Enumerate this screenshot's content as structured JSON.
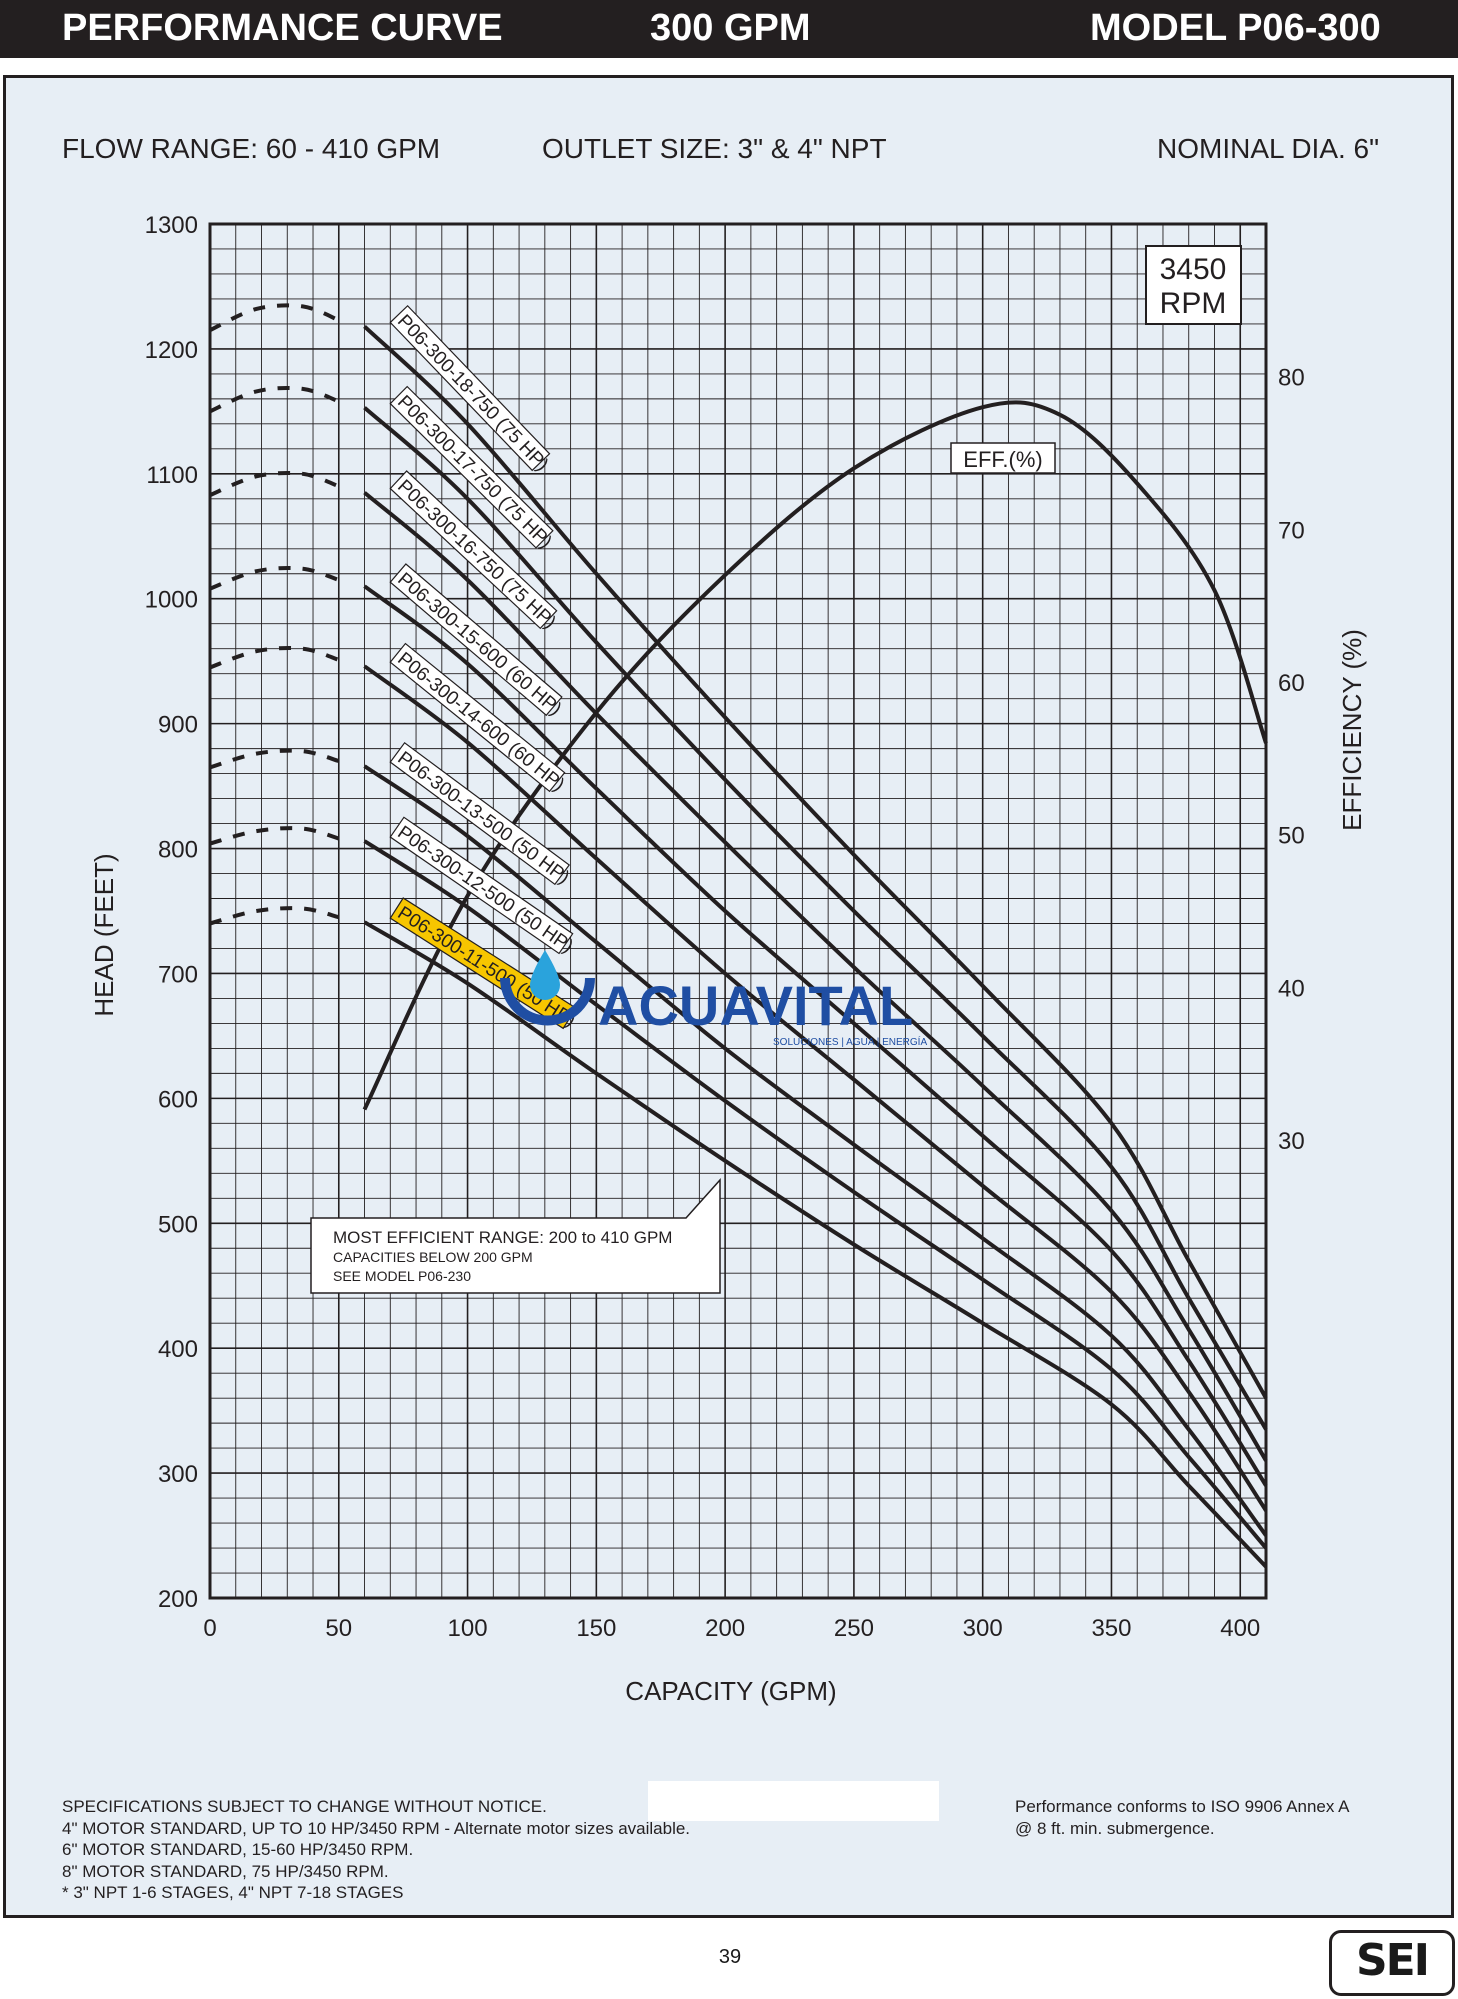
{
  "header": {
    "title": "PERFORMANCE CURVE",
    "flow": "300 GPM",
    "model": "MODEL  P06-300"
  },
  "specs": {
    "flow_range": "FLOW RANGE: 60 - 410 GPM",
    "outlet": "OUTLET SIZE: 3\" & 4\" NPT",
    "diameter": "NOMINAL DIA. 6\""
  },
  "colors": {
    "background": "#e7eef5",
    "ink": "#231f20",
    "highlight": "#f7c600",
    "brand": "#1f4ea3",
    "brand_drop": "#2aa3dc"
  },
  "chart_data": {
    "type": "line",
    "title": "PERFORMANCE CURVE 300 GPM MODEL P06-300",
    "xlabel": "CAPACITY (GPM)",
    "ylabel": "HEAD (FEET)",
    "y2label": "EFFICIENCY (%)",
    "xlim": [
      0,
      410
    ],
    "ylim": [
      200,
      1300
    ],
    "y2lim": [
      0,
      90
    ],
    "x_ticks": [
      0,
      50,
      100,
      150,
      200,
      250,
      300,
      350,
      400
    ],
    "y_ticks": [
      200,
      300,
      400,
      500,
      600,
      700,
      800,
      900,
      1000,
      1100,
      1200,
      1300
    ],
    "y2_ticks": [
      30,
      40,
      50,
      60,
      70,
      80
    ],
    "speed_label": "3450\nRPM",
    "eff_label": "EFF.(%)",
    "series": [
      {
        "name": "P06-300-18-750 (75 HP)",
        "x": [
          60,
          100,
          150,
          200,
          250,
          300,
          350,
          380,
          410
        ],
        "y": [
          1218,
          1140,
          1020,
          905,
          795,
          690,
          580,
          470,
          360
        ],
        "shutoff": [
          1215,
          1232,
          1234,
          1223
        ]
      },
      {
        "name": "P06-300-17-750 (75 HP)",
        "x": [
          60,
          100,
          150,
          200,
          250,
          300,
          350,
          380,
          410
        ],
        "y": [
          1153,
          1080,
          965,
          855,
          750,
          650,
          545,
          440,
          335
        ],
        "shutoff": [
          1150,
          1166,
          1168,
          1158
        ]
      },
      {
        "name": "P06-300-16-750 (75 HP)",
        "x": [
          60,
          100,
          150,
          200,
          250,
          300,
          350,
          380,
          410
        ],
        "y": [
          1085,
          1015,
          908,
          805,
          705,
          610,
          510,
          415,
          310
        ],
        "shutoff": [
          1083,
          1098,
          1100,
          1090
        ]
      },
      {
        "name": "P06-300-15-600 (60 HP)",
        "x": [
          60,
          100,
          150,
          200,
          250,
          300,
          350,
          380,
          410
        ],
        "y": [
          1010,
          948,
          848,
          750,
          660,
          570,
          478,
          390,
          290
        ],
        "shutoff": [
          1008,
          1022,
          1024,
          1015
        ]
      },
      {
        "name": "P06-300-14-600 (60 HP)",
        "x": [
          60,
          100,
          150,
          200,
          250,
          300,
          350,
          380,
          410
        ],
        "y": [
          946,
          885,
          792,
          700,
          615,
          530,
          445,
          365,
          270
        ],
        "shutoff": [
          945,
          958,
          960,
          951
        ]
      },
      {
        "name": "P06-300-13-500 (50 HP)",
        "x": [
          60,
          100,
          150,
          200,
          250,
          300,
          350,
          380,
          410
        ],
        "y": [
          866,
          810,
          725,
          640,
          563,
          488,
          410,
          335,
          250
        ],
        "shutoff": [
          865,
          876,
          878,
          870
        ]
      },
      {
        "name": "P06-300-12-500 (50 HP)",
        "x": [
          60,
          100,
          150,
          200,
          250,
          300,
          350,
          380,
          410
        ],
        "y": [
          806,
          753,
          675,
          598,
          525,
          455,
          383,
          313,
          240
        ],
        "shutoff": [
          804,
          814,
          816,
          808
        ]
      },
      {
        "name": "P06-300-11-500 (50 HP)",
        "x": [
          60,
          100,
          150,
          200,
          250,
          300,
          350,
          380,
          410
        ],
        "y": [
          741,
          692,
          620,
          550,
          483,
          420,
          355,
          290,
          225
        ],
        "shutoff": [
          740,
          750,
          752,
          745
        ],
        "highlight": true
      }
    ],
    "efficiency": {
      "x": [
        60,
        100,
        150,
        200,
        250,
        300,
        330,
        360,
        390,
        410
      ],
      "y": [
        32,
        46,
        58,
        67,
        74,
        78,
        77.5,
        73,
        66,
        56
      ]
    },
    "callout": {
      "line1": "MOST EFFICIENT RANGE: 200 to 410 GPM",
      "line2": "CAPACITIES BELOW 200 GPM",
      "line3": "SEE  MODEL  P06-230"
    }
  },
  "watermark": {
    "name": "ACUAVITAL",
    "tagline": "SOLUCIONES | AGUA | ENERGÍA"
  },
  "notes": [
    "SPECIFICATIONS SUBJECT TO CHANGE WITHOUT NOTICE.",
    "4\" MOTOR STANDARD, UP TO 10 HP/3450 RPM - Alternate motor sizes available.",
    "6\" MOTOR STANDARD, 15-60 HP/3450 RPM.",
    "8\" MOTOR STANDARD, 75 HP/3450 RPM.",
    "* 3\" NPT 1-6 STAGES, 4\" NPT 7-18 STAGES"
  ],
  "iso": [
    "Performance conforms to ISO 9906 Annex A",
    "@ 8 ft. min. submergence."
  ],
  "page_number": "39",
  "logo": "SEI"
}
